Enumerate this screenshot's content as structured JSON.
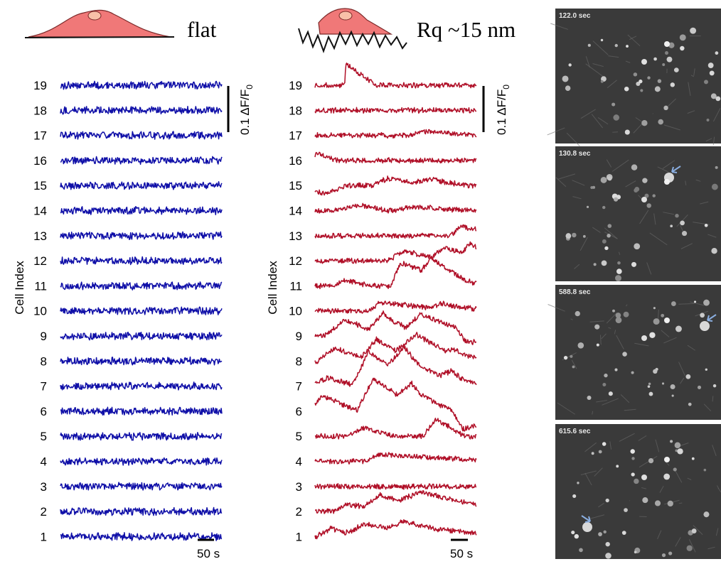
{
  "colors": {
    "flat": "#1010a8",
    "rough": "#b01028",
    "cell_fill": "#f07878",
    "nucleus_fill": "#f8c0a8",
    "frame_bg": "#3a3a3a",
    "arrow": "#8aaee0"
  },
  "panels": {
    "flat": {
      "condition_label": "flat",
      "ylabel": "Cell Index",
      "scale_amplitude": "0.1 ΔF/F",
      "scale_amplitude_sub": "0",
      "scale_time": "50 s"
    },
    "rough": {
      "condition_label": "Rq ~15 nm",
      "ylabel": "Cell Index",
      "scale_amplitude": "0.1 ΔF/F",
      "scale_amplitude_sub": "0",
      "scale_time": "50 s"
    }
  },
  "frames": [
    {
      "timestamp": "122.0 sec",
      "arrow": false
    },
    {
      "timestamp": "130.8 sec",
      "arrow": true
    },
    {
      "timestamp": "588.8 sec",
      "arrow": true
    },
    {
      "timestamp": "615.6 sec",
      "arrow": true
    }
  ],
  "chart_data": [
    {
      "type": "line",
      "panel": "flat",
      "ylabel": "Cell Index",
      "y_categories": [
        "1",
        "2",
        "3",
        "4",
        "5",
        "6",
        "7",
        "8",
        "9",
        "10",
        "11",
        "12",
        "13",
        "14",
        "15",
        "16",
        "17",
        "18",
        "19"
      ],
      "scale_bars": {
        "amplitude": "0.1 ΔF/F0",
        "time": "50 s"
      },
      "series": [
        {
          "name": "1",
          "events": []
        },
        {
          "name": "2",
          "events": []
        },
        {
          "name": "3",
          "events": []
        },
        {
          "name": "4",
          "events": []
        },
        {
          "name": "5",
          "events": []
        },
        {
          "name": "6",
          "events": []
        },
        {
          "name": "7",
          "events": []
        },
        {
          "name": "8",
          "events": []
        },
        {
          "name": "9",
          "events": []
        },
        {
          "name": "10",
          "events": []
        },
        {
          "name": "11",
          "events": []
        },
        {
          "name": "12",
          "events": []
        },
        {
          "name": "13",
          "events": []
        },
        {
          "name": "14",
          "events": []
        },
        {
          "name": "15",
          "events": []
        },
        {
          "name": "16",
          "events": []
        },
        {
          "name": "17",
          "events": []
        },
        {
          "name": "18",
          "events": []
        },
        {
          "name": "19",
          "events": []
        }
      ]
    },
    {
      "type": "line",
      "panel": "rough",
      "ylabel": "Cell Index",
      "y_categories": [
        "1",
        "2",
        "3",
        "4",
        "5",
        "6",
        "7",
        "8",
        "9",
        "10",
        "11",
        "12",
        "13",
        "14",
        "15",
        "16",
        "17",
        "18",
        "19"
      ],
      "scale_bars": {
        "amplitude": "0.1 ΔF/F0",
        "time": "50 s"
      },
      "series": [
        {
          "name": "1",
          "events": [
            [
              0.1,
              0.14,
              0.09,
              12
            ],
            [
              0.3,
              0.45,
              0.12,
              18
            ],
            [
              0.55,
              0.72,
              0.1,
              14
            ]
          ]
        },
        {
          "name": "2",
          "events": [
            [
              0.2,
              0.32,
              0.08,
              10
            ],
            [
              0.4,
              0.6,
              0.1,
              20
            ],
            [
              0.65,
              0.8,
              0.12,
              16
            ]
          ]
        },
        {
          "name": "3",
          "events": []
        },
        {
          "name": "4",
          "events": [
            [
              0.4,
              0.75,
              0.08,
              10
            ]
          ]
        },
        {
          "name": "5",
          "events": [
            [
              0.06,
              0.12,
              -0.2,
              -18
            ],
            [
              0.3,
              0.2,
              0.1,
              12
            ],
            [
              0.75,
              0.18,
              0.08,
              24
            ]
          ]
        },
        {
          "name": "6",
          "events": [
            [
              0.05,
              0.22,
              0.1,
              22
            ],
            [
              0.36,
              0.3,
              0.1,
              46
            ],
            [
              0.6,
              0.25,
              0.09,
              30
            ],
            [
              0.92,
              0.28,
              0.07,
              -26
            ]
          ]
        },
        {
          "name": "7",
          "events": [
            [
              0.08,
              0.18,
              0.12,
              12
            ],
            [
              0.33,
              0.32,
              0.1,
              48
            ],
            [
              0.55,
              0.35,
              0.1,
              40
            ],
            [
              0.85,
              0.2,
              0.08,
              16
            ]
          ]
        },
        {
          "name": "8",
          "events": [
            [
              0.12,
              0.27,
              0.1,
              18
            ],
            [
              0.38,
              0.23,
              0.09,
              30
            ],
            [
              0.62,
              0.3,
              0.12,
              38
            ],
            [
              0.88,
              0.24,
              0.08,
              10
            ]
          ]
        },
        {
          "name": "9",
          "events": [
            [
              0.18,
              0.3,
              0.12,
              22
            ],
            [
              0.42,
              0.25,
              0.08,
              28
            ],
            [
              0.66,
              0.35,
              0.1,
              30
            ],
            [
              0.93,
              0.24,
              0.06,
              -14
            ]
          ]
        },
        {
          "name": "10",
          "events": [
            [
              0.4,
              0.48,
              0.06,
              12
            ],
            [
              0.78,
              0.35,
              0.06,
              8
            ]
          ]
        },
        {
          "name": "11",
          "events": [
            [
              0.2,
              0.14,
              0.09,
              8
            ],
            [
              0.53,
              0.4,
              0.06,
              32
            ],
            [
              0.72,
              0.32,
              0.06,
              22
            ]
          ]
        },
        {
          "name": "12",
          "events": [
            [
              0.55,
              0.25,
              0.1,
              14
            ],
            [
              0.8,
              0.3,
              0.08,
              18
            ],
            [
              0.96,
              0.2,
              0.05,
              16
            ]
          ]
        },
        {
          "name": "13",
          "events": [
            [
              0.9,
              0.25,
              0.06,
              14
            ]
          ]
        },
        {
          "name": "14",
          "events": [
            [
              0.25,
              0.2,
              0.12,
              8
            ],
            [
              0.6,
              0.34,
              0.12,
              6
            ]
          ]
        },
        {
          "name": "15",
          "events": [
            [
              0.05,
              0.16,
              0.12,
              -12
            ],
            [
              0.45,
              0.32,
              0.1,
              10
            ],
            [
              0.72,
              0.24,
              0.1,
              8
            ]
          ]
        },
        {
          "name": "16",
          "events": [
            [
              0.02,
              0.12,
              0.06,
              10
            ]
          ]
        },
        {
          "name": "17",
          "events": [
            [
              0.65,
              0.36,
              0.05,
              6
            ]
          ]
        },
        {
          "name": "18",
          "events": []
        },
        {
          "name": "19",
          "events": [
            [
              0.19,
              0.19,
              0.006,
              30
            ]
          ]
        }
      ]
    }
  ]
}
